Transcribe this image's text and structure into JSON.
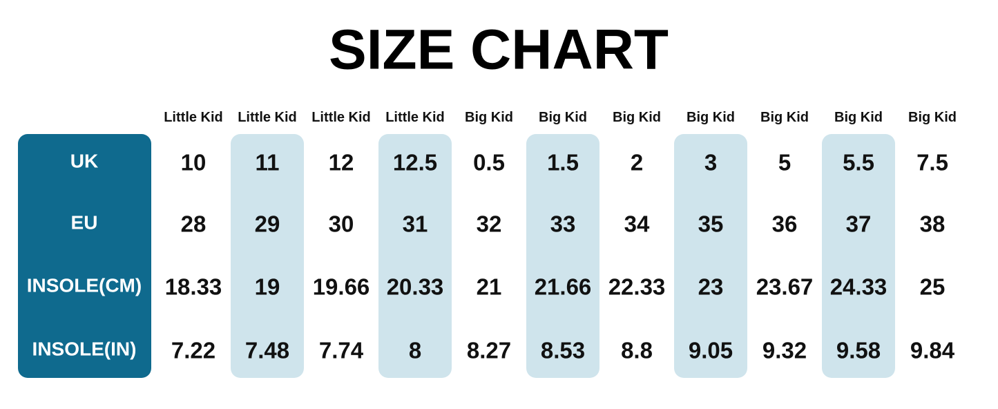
{
  "title": "SIZE CHART",
  "table": {
    "columns": [
      "Little Kid",
      "Little Kid",
      "Little Kid",
      "Little Kid",
      "Big Kid",
      "Big Kid",
      "Big Kid",
      "Big Kid",
      "Big Kid",
      "Big Kid",
      "Big Kid"
    ],
    "row_labels": [
      "UK",
      "EU",
      "INSOLE(CM)",
      "INSOLE(IN)"
    ],
    "rows": [
      [
        "10",
        "11",
        "12",
        "12.5",
        "0.5",
        "1.5",
        "2",
        "3",
        "5",
        "5.5",
        "7.5"
      ],
      [
        "28",
        "29",
        "30",
        "31",
        "32",
        "33",
        "34",
        "35",
        "36",
        "37",
        "38"
      ],
      [
        "18.33",
        "19",
        "19.66",
        "20.33",
        "21",
        "21.66",
        "22.33",
        "23",
        "23.67",
        "24.33",
        "25"
      ],
      [
        "7.22",
        "7.48",
        "7.74",
        "8",
        "8.27",
        "8.53",
        "8.8",
        "9.05",
        "9.32",
        "9.58",
        "9.84"
      ]
    ]
  }
}
